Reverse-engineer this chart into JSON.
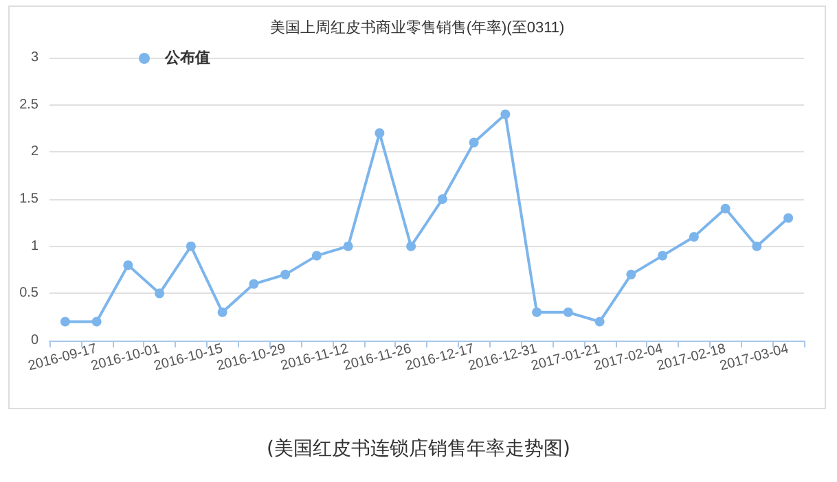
{
  "chart_data": {
    "type": "line",
    "title": "美国上周红皮书商业零售销售(年率)(至0311)",
    "categories": [
      null,
      "2016-09-17",
      null,
      "2016-10-01",
      null,
      "2016-10-15",
      null,
      "2016-10-29",
      null,
      "2016-11-12",
      null,
      "2016-11-26",
      null,
      "2016-12-17",
      null,
      "2016-12-31",
      null,
      "2017-01-21",
      null,
      "2017-02-04",
      null,
      "2017-02-18",
      null,
      "2017-03-04"
    ],
    "series": [
      {
        "name": "公布值",
        "color": "#7cb5ec",
        "values": [
          0.2,
          0.2,
          0.8,
          0.5,
          1.0,
          0.3,
          0.6,
          0.7,
          0.9,
          1.0,
          2.2,
          1.0,
          1.5,
          2.1,
          2.4,
          0.3,
          0.3,
          0.2,
          0.7,
          0.9,
          1.1,
          1.4,
          1.0,
          1.3
        ]
      }
    ],
    "ylim": [
      0,
      3
    ],
    "yticks": [
      0,
      0.5,
      1,
      1.5,
      2,
      2.5,
      3
    ],
    "grid": "y",
    "legend": "top left",
    "marker": "circle",
    "line_style": "solid",
    "annotations": [
      "(美国红皮书连锁店销售年率走势图)"
    ]
  }
}
